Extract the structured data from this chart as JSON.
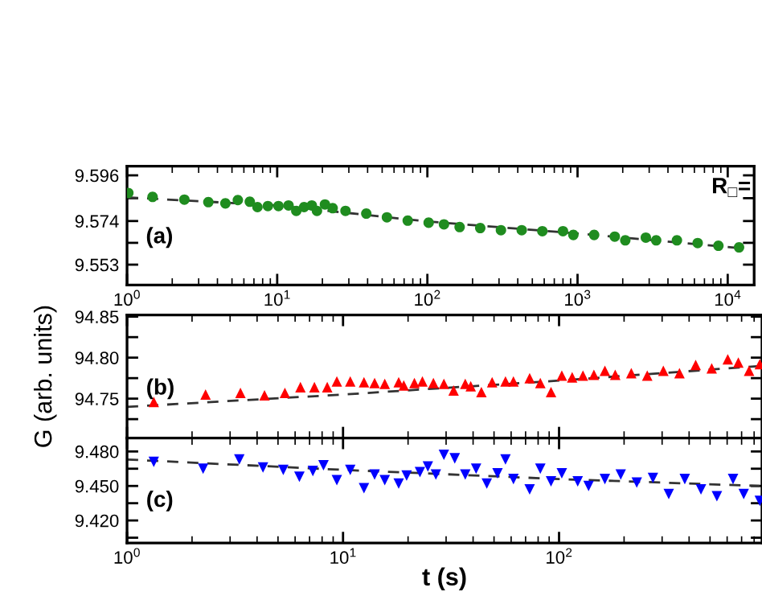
{
  "chart_data": [
    {
      "type": "scatter",
      "log": "x",
      "xlim": [
        1,
        15000
      ],
      "ylim": [
        9.5432,
        9.6004
      ],
      "xticks": [
        {
          "value": 1,
          "label": "10$^{0}$"
        },
        {
          "value": 10,
          "label": "10$^{1}$"
        },
        {
          "value": 100,
          "label": "10$^{2}$"
        },
        {
          "value": 1000,
          "label": "10$^{3}$"
        },
        {
          "value": 10000,
          "label": "10$^{4}$"
        }
      ],
      "yticks": [
        9.553,
        {
          "value": 9.5635,
          "label": null
        },
        9.574,
        {
          "value": 9.585,
          "label": null
        },
        9.596
      ],
      "annotations": [
        "(a)",
        "R$_{□}$="
      ],
      "series": [
        {
          "color": "#1f8c1f",
          "marker": "circle",
          "x": [
            1.02,
            1.48,
            2.41,
            3.48,
            4.52,
            5.47,
            6.57,
            7.39,
            8.67,
            10.2,
            11.9,
            13.4,
            15.1,
            17.0,
            18.4,
            20.8,
            23.4,
            28.5,
            39.2,
            53.8,
            74,
            102,
            129,
            164,
            225,
            309,
            425,
            583,
            800,
            938,
            1290,
            1770,
            2080,
            2850,
            3340,
            4590,
            6310,
            8670,
            11900
          ],
          "values": [
            9.5875,
            9.5856,
            9.5843,
            9.5831,
            9.5825,
            9.5841,
            9.5833,
            9.5807,
            9.5812,
            9.5812,
            9.5815,
            9.5789,
            9.5807,
            9.5815,
            9.5789,
            9.582,
            9.5802,
            9.5789,
            9.5776,
            9.5758,
            9.5742,
            9.5732,
            9.5724,
            9.5711,
            9.5706,
            9.5696,
            9.5696,
            9.5691,
            9.5691,
            9.5673,
            9.5673,
            9.5665,
            9.5647,
            9.566,
            9.5647,
            9.5647,
            9.5634,
            9.5621,
            9.5613
          ]
        },
        {
          "type": "line",
          "color": "#333333",
          "line_style": "dashed",
          "x": [
            1,
            10,
            100,
            1000,
            12000
          ],
          "values": [
            9.5854,
            9.5815,
            9.5738,
            9.568,
            9.561
          ]
        }
      ]
    },
    {
      "type": "scatter",
      "log": "x",
      "xlim": [
        1,
        870
      ],
      "ylim": [
        94.702,
        94.852
      ],
      "tick_labels": "y",
      "ylabel": "G (arb. units)",
      "xticks": [
        1,
        10,
        100
      ],
      "yticks": [
        {
          "value": 94.725,
          "label": null
        },
        {
          "value": 94.75,
          "label": "94.75"
        },
        {
          "value": 94.775,
          "label": null
        },
        {
          "value": 94.8,
          "label": "94.80"
        },
        {
          "value": 94.825,
          "label": null
        },
        {
          "value": 94.85,
          "label": "94.85"
        }
      ],
      "annotations": [
        "(b)"
      ],
      "series": [
        {
          "color": "#ff0000",
          "marker": "triangle",
          "x": [
            1.33,
            2.31,
            3.35,
            4.33,
            5.38,
            6.35,
            7.37,
            8.45,
            9.36,
            10.8,
            12.5,
            14.0,
            15.6,
            18.1,
            19.1,
            21.4,
            23.3,
            26.2,
            29.3,
            32.5,
            36.8,
            39.0,
            43.7,
            49.0,
            56.5,
            61.5,
            73.1,
            81.9,
            91.8,
            103,
            115,
            129,
            145,
            163,
            182,
            216,
            256,
            304,
            361,
            429,
            509,
            604,
            676,
            758,
            850
          ],
          "values": [
            94.746,
            94.755,
            94.757,
            94.754,
            94.757,
            94.764,
            94.764,
            94.764,
            94.771,
            94.771,
            94.77,
            94.769,
            94.768,
            94.77,
            94.766,
            94.769,
            94.771,
            94.769,
            94.768,
            94.76,
            94.768,
            94.765,
            94.758,
            94.77,
            94.771,
            94.771,
            94.775,
            94.769,
            94.758,
            94.778,
            94.776,
            94.778,
            94.779,
            94.784,
            94.779,
            94.781,
            94.778,
            94.784,
            94.781,
            94.791,
            94.787,
            94.798,
            94.794,
            94.784,
            94.792
          ]
        },
        {
          "type": "line",
          "color": "#333333",
          "line_style": "dashed",
          "x": [
            1,
            10,
            100,
            870
          ],
          "values": [
            94.74,
            94.755,
            94.772,
            94.79
          ]
        }
      ]
    },
    {
      "type": "scatter",
      "log": "x",
      "xlim": [
        1,
        870
      ],
      "ylim": [
        9.4004,
        9.4917
      ],
      "xlabel": "t (s)",
      "xticks": [
        {
          "value": 1,
          "label": "10$^{0}$"
        },
        {
          "value": 10,
          "label": "10$^{1}$"
        },
        {
          "value": 100,
          "label": "10$^{2}$"
        }
      ],
      "yticks": [
        {
          "value": 9.405,
          "label": null
        },
        {
          "value": 9.42,
          "label": "9.420"
        },
        {
          "value": 9.435,
          "label": null
        },
        {
          "value": 9.45,
          "label": "9.450"
        },
        {
          "value": 9.465,
          "label": null
        },
        {
          "value": 9.48,
          "label": "9.480"
        }
      ],
      "annotations": [
        "(c)"
      ],
      "series": [
        {
          "color": "#0000ff",
          "marker": "triangle_down",
          "x": [
            1.33,
            2.25,
            3.31,
            4.26,
            5.29,
            6.28,
            7.25,
            8.12,
            9.36,
            10.8,
            12.5,
            14.0,
            15.6,
            18.1,
            19.7,
            22.7,
            24.7,
            26.9,
            29.3,
            32.9,
            36.8,
            41.3,
            46.3,
            51.9,
            56.5,
            61.5,
            73.1,
            81.9,
            91.8,
            103,
            122,
            137,
            163,
            193,
            229,
            272,
            322,
            382,
            454,
            538,
            639,
            716,
            850
          ],
          "values": [
            9.471,
            9.465,
            9.473,
            9.466,
            9.464,
            9.458,
            9.463,
            9.468,
            9.455,
            9.464,
            9.448,
            9.46,
            9.455,
            9.452,
            9.459,
            9.462,
            9.467,
            9.46,
            9.477,
            9.474,
            9.46,
            9.465,
            9.452,
            9.461,
            9.473,
            9.456,
            9.447,
            9.465,
            9.454,
            9.461,
            9.454,
            9.45,
            9.456,
            9.46,
            9.453,
            9.457,
            9.443,
            9.456,
            9.447,
            9.441,
            9.456,
            9.443,
            9.437
          ]
        },
        {
          "type": "line",
          "color": "#333333",
          "line_style": "dashed",
          "x": [
            1,
            10,
            100,
            850
          ],
          "values": [
            9.473,
            9.464,
            9.456,
            9.45
          ]
        }
      ]
    }
  ]
}
